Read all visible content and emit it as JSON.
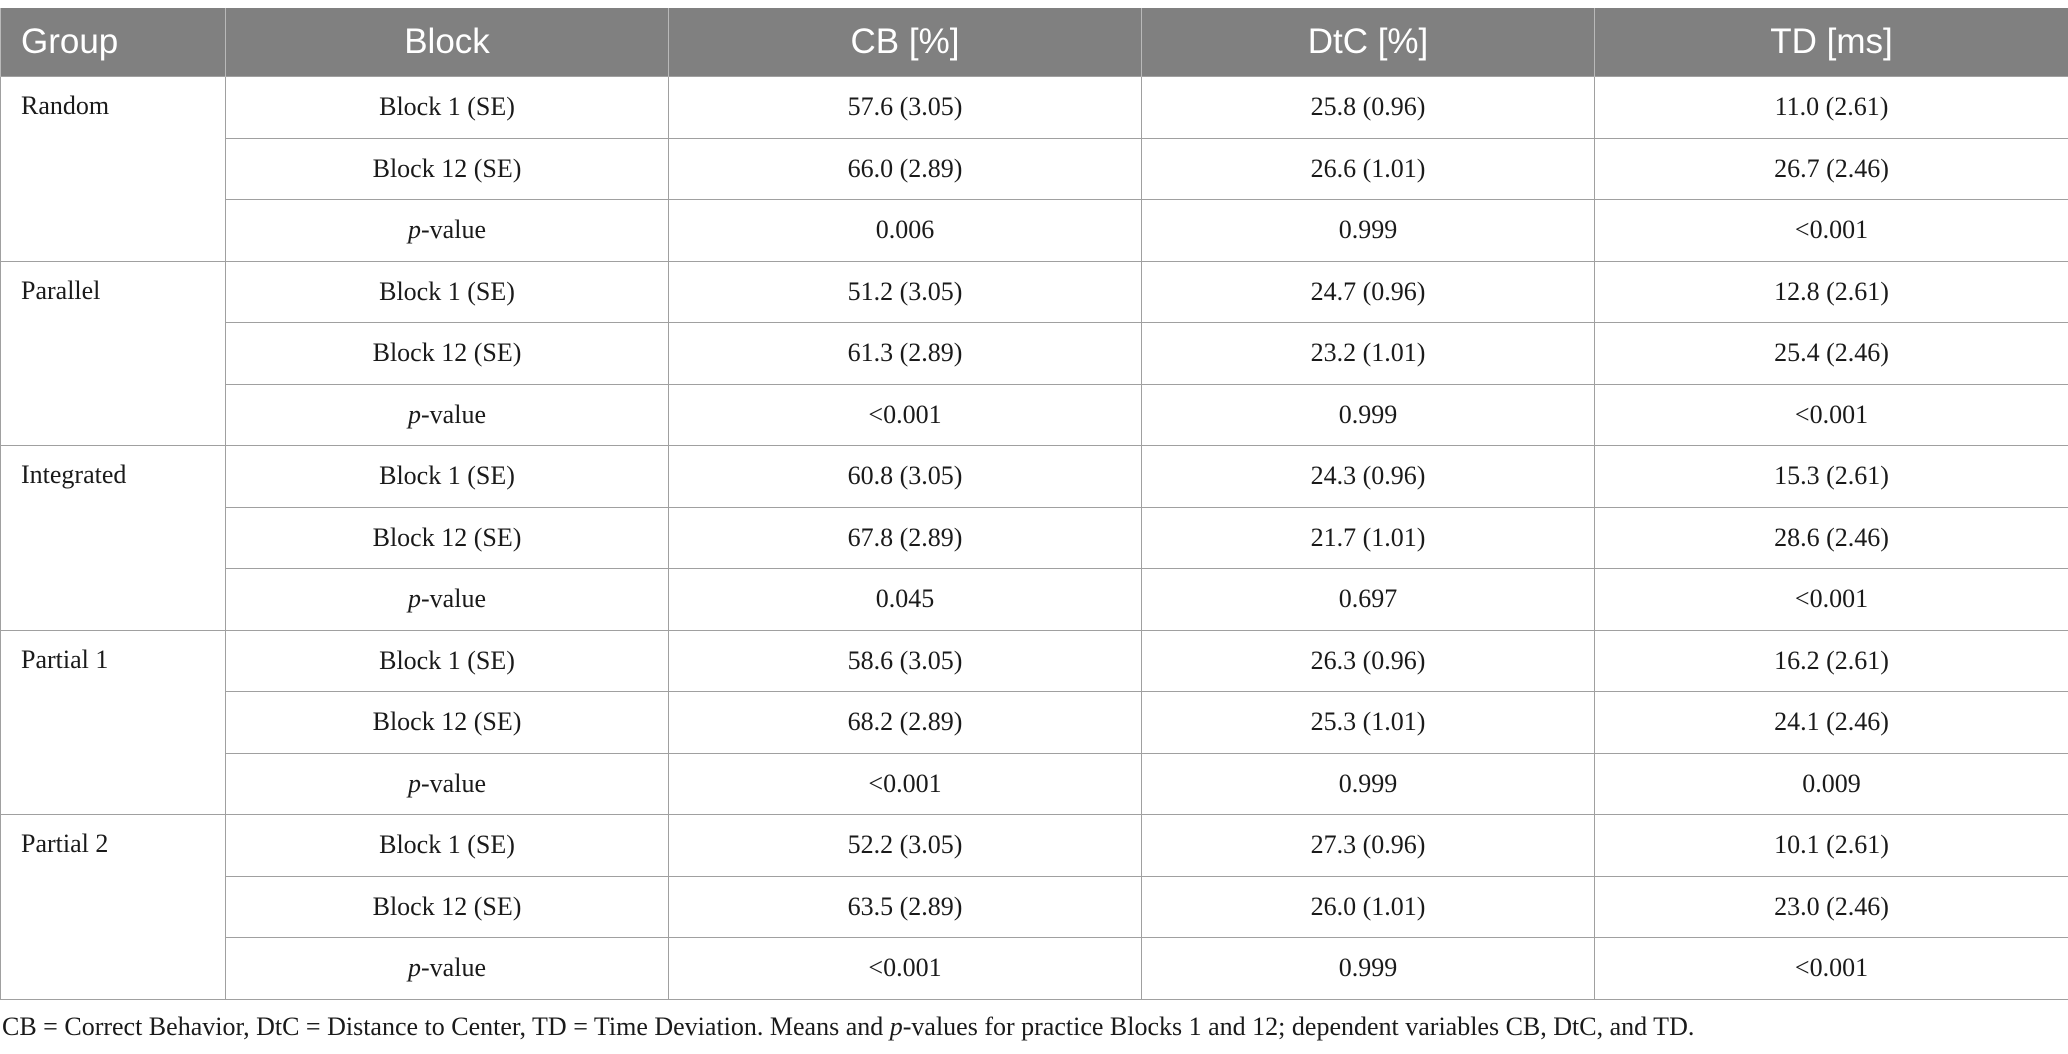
{
  "table": {
    "headers": [
      "Group",
      "Block",
      "CB [%]",
      "DtC [%]",
      "TD [ms]"
    ],
    "groups": [
      {
        "name": "Random",
        "rows": [
          {
            "block": "Block 1 (SE)",
            "cb": "57.6 (3.05)",
            "dtc": "25.8 (0.96)",
            "td": "11.0 (2.61)"
          },
          {
            "block": "Block 12 (SE)",
            "cb": "66.0 (2.89)",
            "dtc": "26.6 (1.01)",
            "td": "26.7 (2.46)"
          },
          {
            "block_italic": "p",
            "block_suffix": "-value",
            "cb": "0.006",
            "dtc": "0.999",
            "td": "<0.001"
          }
        ]
      },
      {
        "name": "Parallel",
        "rows": [
          {
            "block": "Block 1 (SE)",
            "cb": "51.2 (3.05)",
            "dtc": "24.7 (0.96)",
            "td": "12.8 (2.61)"
          },
          {
            "block": "Block 12 (SE)",
            "cb": "61.3 (2.89)",
            "dtc": "23.2 (1.01)",
            "td": "25.4 (2.46)"
          },
          {
            "block_italic": "p",
            "block_suffix": "-value",
            "cb": "<0.001",
            "dtc": "0.999",
            "td": "<0.001"
          }
        ]
      },
      {
        "name": "Integrated",
        "rows": [
          {
            "block": "Block 1 (SE)",
            "cb": "60.8 (3.05)",
            "dtc": "24.3 (0.96)",
            "td": "15.3 (2.61)"
          },
          {
            "block": "Block 12 (SE)",
            "cb": "67.8 (2.89)",
            "dtc": "21.7 (1.01)",
            "td": "28.6 (2.46)"
          },
          {
            "block_italic": "p",
            "block_suffix": "-value",
            "cb": "0.045",
            "dtc": "0.697",
            "td": "<0.001"
          }
        ]
      },
      {
        "name": "Partial 1",
        "rows": [
          {
            "block": "Block 1 (SE)",
            "cb": "58.6 (3.05)",
            "dtc": "26.3 (0.96)",
            "td": "16.2 (2.61)"
          },
          {
            "block": "Block 12 (SE)",
            "cb": "68.2 (2.89)",
            "dtc": "25.3 (1.01)",
            "td": "24.1 (2.46)"
          },
          {
            "block_italic": "p",
            "block_suffix": "-value",
            "cb": "<0.001",
            "dtc": "0.999",
            "td": "0.009"
          }
        ]
      },
      {
        "name": "Partial 2",
        "rows": [
          {
            "block": "Block 1 (SE)",
            "cb": "52.2 (3.05)",
            "dtc": "27.3 (0.96)",
            "td": "10.1 (2.61)"
          },
          {
            "block": "Block 12 (SE)",
            "cb": "63.5 (2.89)",
            "dtc": "26.0 (1.01)",
            "td": "23.0 (2.46)"
          },
          {
            "block_italic": "p",
            "block_suffix": "-value",
            "cb": "<0.001",
            "dtc": "0.999",
            "td": "<0.001"
          }
        ]
      }
    ]
  },
  "footnote": {
    "part1": "CB = Correct Behavior, DtC = Distance to Center, TD = Time Deviation. Means and ",
    "italic": "p",
    "part2": "-values for practice Blocks 1 and 12; dependent variables CB, DtC, and TD."
  },
  "colors": {
    "header_bg": "#808080",
    "header_text": "#ffffff",
    "grid_line": "#a0a0a0"
  }
}
